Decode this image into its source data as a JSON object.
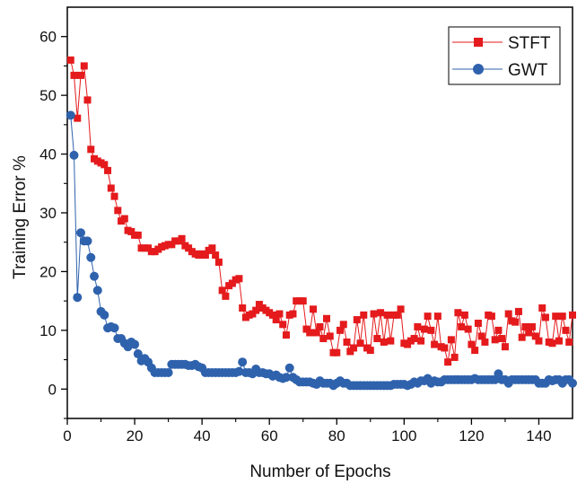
{
  "chart_data": {
    "type": "line",
    "xlabel": "Number of Epochs",
    "ylabel": "Training Error %",
    "xlim": [
      0,
      150
    ],
    "ylim": [
      -5,
      65
    ],
    "x_ticks": [
      0,
      20,
      40,
      60,
      80,
      100,
      120,
      140
    ],
    "y_ticks": [
      0,
      10,
      20,
      30,
      40,
      50,
      60
    ],
    "grid": false,
    "legend_position": "top-right",
    "series": [
      {
        "name": "STFT",
        "color": "#e41a1c",
        "marker": "square",
        "x": [
          1,
          2,
          3,
          4,
          5,
          6,
          7,
          8,
          9,
          10,
          11,
          12,
          13,
          14,
          15,
          16,
          17,
          18,
          19,
          20,
          21,
          22,
          23,
          24,
          25,
          26,
          27,
          28,
          29,
          30,
          31,
          32,
          33,
          34,
          35,
          36,
          37,
          38,
          39,
          40,
          41,
          42,
          43,
          44,
          45,
          46,
          47,
          48,
          49,
          50,
          51,
          52,
          53,
          54,
          55,
          56,
          57,
          58,
          59,
          60,
          61,
          62,
          63,
          64,
          65,
          66,
          67,
          68,
          69,
          70,
          71,
          72,
          73,
          74,
          75,
          76,
          77,
          78,
          79,
          80,
          81,
          82,
          83,
          84,
          85,
          86,
          87,
          88,
          89,
          90,
          91,
          92,
          93,
          94,
          95,
          96,
          97,
          98,
          99,
          100,
          101,
          102,
          103,
          104,
          105,
          106,
          107,
          108,
          109,
          110,
          111,
          112,
          113,
          114,
          115,
          116,
          117,
          118,
          119,
          120,
          121,
          122,
          123,
          124,
          125,
          126,
          127,
          128,
          129,
          130,
          131,
          132,
          133,
          134,
          135,
          136,
          137,
          138,
          139,
          140,
          141,
          142,
          143,
          144,
          145,
          146,
          147,
          148,
          149,
          150
        ],
        "values": [
          56.0,
          53.4,
          46.1,
          53.4,
          55.0,
          49.2,
          40.8,
          39.2,
          38.8,
          38.5,
          38.2,
          37.2,
          34.2,
          32.8,
          30.4,
          28.6,
          29.0,
          27.0,
          26.8,
          26.2,
          26.2,
          24.0,
          24.0,
          24.0,
          23.4,
          23.4,
          23.8,
          24.2,
          24.4,
          24.6,
          24.6,
          25.2,
          25.2,
          25.6,
          24.4,
          24.0,
          23.4,
          23.0,
          22.8,
          23.0,
          22.8,
          23.6,
          24.0,
          22.8,
          21.6,
          16.8,
          15.8,
          17.6,
          18.0,
          18.6,
          18.8,
          13.8,
          12.2,
          12.6,
          12.8,
          13.4,
          14.4,
          13.8,
          13.4,
          13.0,
          12.6,
          11.8,
          12.8,
          11.0,
          9.2,
          12.6,
          12.8,
          15.0,
          15.0,
          15.0,
          10.2,
          9.6,
          13.6,
          9.6,
          10.6,
          8.6,
          12.0,
          9.0,
          6.2,
          6.2,
          10.0,
          11.0,
          8.0,
          6.4,
          7.0,
          11.8,
          7.8,
          12.6,
          7.0,
          6.6,
          12.8,
          8.6,
          13.0,
          8.0,
          12.6,
          8.2,
          12.6,
          12.6,
          13.6,
          7.8,
          7.6,
          8.2,
          8.6,
          10.6,
          8.2,
          10.2,
          12.4,
          10.0,
          7.6,
          12.4,
          7.2,
          7.0,
          4.6,
          8.4,
          5.4,
          13.0,
          10.6,
          12.6,
          10.2,
          7.6,
          6.6,
          11.2,
          9.0,
          8.0,
          12.6,
          12.4,
          8.4,
          10.0,
          8.6,
          7.2,
          12.8,
          11.6,
          11.4,
          13.2,
          8.8,
          10.6,
          9.6,
          10.6,
          9.0,
          8.2,
          13.8,
          12.2,
          8.0,
          7.8,
          12.4,
          8.2,
          12.4,
          10.0,
          8.0,
          12.6
        ]
      },
      {
        "name": "GWT",
        "color": "#2f62ad",
        "marker": "circle",
        "x": [
          1,
          2,
          3,
          4,
          5,
          6,
          7,
          8,
          9,
          10,
          11,
          12,
          13,
          14,
          15,
          16,
          17,
          18,
          19,
          20,
          21,
          22,
          23,
          24,
          25,
          26,
          27,
          28,
          29,
          30,
          31,
          32,
          33,
          34,
          35,
          36,
          37,
          38,
          39,
          40,
          41,
          42,
          43,
          44,
          45,
          46,
          47,
          48,
          49,
          50,
          51,
          52,
          53,
          54,
          55,
          56,
          57,
          58,
          59,
          60,
          61,
          62,
          63,
          64,
          65,
          66,
          67,
          68,
          69,
          70,
          71,
          72,
          73,
          74,
          75,
          76,
          77,
          78,
          79,
          80,
          81,
          82,
          83,
          84,
          85,
          86,
          87,
          88,
          89,
          90,
          91,
          92,
          93,
          94,
          95,
          96,
          97,
          98,
          99,
          100,
          101,
          102,
          103,
          104,
          105,
          106,
          107,
          108,
          109,
          110,
          111,
          112,
          113,
          114,
          115,
          116,
          117,
          118,
          119,
          120,
          121,
          122,
          123,
          124,
          125,
          126,
          127,
          128,
          129,
          130,
          131,
          132,
          133,
          134,
          135,
          136,
          137,
          138,
          139,
          140,
          141,
          142,
          143,
          144,
          145,
          146,
          147,
          148,
          149,
          150
        ],
        "values": [
          46.6,
          39.8,
          15.6,
          26.6,
          25.2,
          25.2,
          22.4,
          19.2,
          16.8,
          13.2,
          12.6,
          10.4,
          10.6,
          10.4,
          8.6,
          8.6,
          7.8,
          7.2,
          8.0,
          7.6,
          6.0,
          4.8,
          5.2,
          4.6,
          3.6,
          2.8,
          2.8,
          2.8,
          2.8,
          2.8,
          4.2,
          4.2,
          4.2,
          4.2,
          4.2,
          4.0,
          4.0,
          4.2,
          3.8,
          3.6,
          2.8,
          2.8,
          2.8,
          2.8,
          2.8,
          2.8,
          2.8,
          2.8,
          2.8,
          2.8,
          3.0,
          4.6,
          2.8,
          2.8,
          2.6,
          3.4,
          2.8,
          2.8,
          2.6,
          2.6,
          2.2,
          2.4,
          2.0,
          1.8,
          2.0,
          3.6,
          2.0,
          1.6,
          1.2,
          1.2,
          1.2,
          1.2,
          1.0,
          0.8,
          1.4,
          1.0,
          1.0,
          1.0,
          0.6,
          1.0,
          1.4,
          1.0,
          1.0,
          0.6,
          0.6,
          0.6,
          0.6,
          0.6,
          0.6,
          0.6,
          0.6,
          0.6,
          0.6,
          0.6,
          0.6,
          0.6,
          0.8,
          0.8,
          0.8,
          0.8,
          0.6,
          0.8,
          1.2,
          1.0,
          1.4,
          1.4,
          1.8,
          1.0,
          1.4,
          1.2,
          1.2,
          1.6,
          1.6,
          1.6,
          1.6,
          1.6,
          1.6,
          1.6,
          1.6,
          1.6,
          1.8,
          1.6,
          1.6,
          1.6,
          1.6,
          1.6,
          1.6,
          2.6,
          1.6,
          1.6,
          1.0,
          1.6,
          1.6,
          1.6,
          1.6,
          1.6,
          1.6,
          1.6,
          1.6,
          1.0,
          1.0,
          1.0,
          1.6,
          1.4,
          1.6,
          1.6,
          1.0,
          1.6,
          1.6,
          1.0
        ]
      }
    ]
  }
}
